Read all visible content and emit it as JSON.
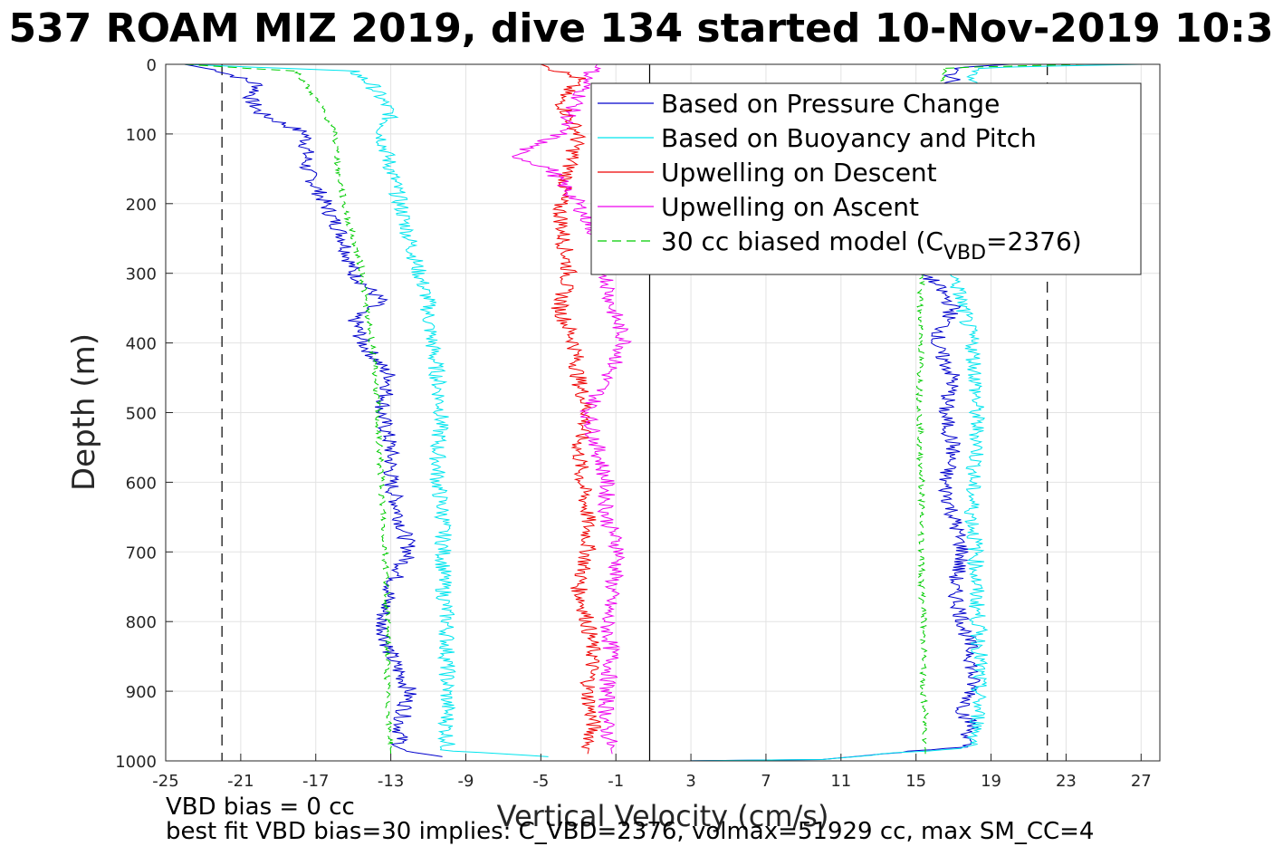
{
  "chart_data": {
    "type": "line",
    "title": "537 ROAM MIZ 2019, dive 134 started 10-Nov-2019 10:3",
    "xlabel": "Vertical Velocity (cm/s)",
    "ylabel": "Depth (m)",
    "xlim": [
      -25,
      28
    ],
    "ylim": [
      0,
      1000
    ],
    "y_reversed": true,
    "grid": true,
    "xticks": [
      -25,
      -21,
      -17,
      -13,
      -9,
      -5,
      -1,
      3,
      7,
      11,
      15,
      19,
      23,
      27
    ],
    "yticks": [
      0,
      100,
      200,
      300,
      400,
      500,
      600,
      700,
      800,
      900,
      1000
    ],
    "reference_lines": [
      {
        "x": 0.8,
        "style": "solid",
        "color": "#000000"
      },
      {
        "x": -22.0,
        "style": "dashed",
        "color": "#000000"
      },
      {
        "x": 22.0,
        "style": "dashed",
        "color": "#000000"
      }
    ],
    "legend": {
      "placement": "top-right",
      "entries": [
        {
          "label": "Based on Pressure Change",
          "color": "#0000cc",
          "style": "solid"
        },
        {
          "label": "Based on Buoyancy and Pitch",
          "color": "#00e5ee",
          "style": "solid"
        },
        {
          "label": "Upwelling on Descent",
          "color": "#ee0000",
          "style": "solid"
        },
        {
          "label": "Upwelling on Ascent",
          "color": "#ee00ee",
          "style": "solid"
        },
        {
          "label_prefix": "30 cc biased model (C",
          "label_sub": "VBD",
          "label_suffix": "=2376)",
          "color": "#00cc00",
          "style": "dashed"
        }
      ]
    },
    "series": [
      {
        "key": "pressure_descent",
        "color": "#0000cc",
        "dash": false,
        "depth": [
          0,
          10,
          30,
          50,
          70,
          100,
          150,
          200,
          250,
          300,
          340,
          360,
          400,
          450,
          500,
          550,
          600,
          650,
          700,
          750,
          800,
          850,
          900,
          950,
          985,
          995
        ],
        "velocity": [
          -24,
          -22,
          -20,
          -20.5,
          -20,
          -17.5,
          -17.5,
          -16.5,
          -15.5,
          -15,
          -13.5,
          -15,
          -14.5,
          -13,
          -13.5,
          -13,
          -13,
          -12.5,
          -12,
          -13,
          -13.5,
          -13,
          -12,
          -12.5,
          -12.5,
          -10
        ]
      },
      {
        "key": "buoyancy_descent",
        "color": "#00e5ee",
        "dash": false,
        "depth": [
          0,
          10,
          30,
          50,
          70,
          100,
          150,
          200,
          250,
          300,
          340,
          360,
          400,
          450,
          500,
          550,
          600,
          650,
          700,
          750,
          800,
          850,
          900,
          950,
          985,
          995
        ],
        "velocity": [
          -24,
          -15,
          -14,
          -13.5,
          -13,
          -13.5,
          -13,
          -12.5,
          -12,
          -11.5,
          -11,
          -11,
          -10.8,
          -10.5,
          -10.3,
          -10.5,
          -10.5,
          -10.2,
          -10.2,
          -10.2,
          -10,
          -10,
          -10,
          -10,
          -10,
          -4
        ]
      },
      {
        "key": "upwelling_descent",
        "color": "#ee0000",
        "dash": false,
        "depth": [
          0,
          20,
          50,
          100,
          150,
          200,
          250,
          300,
          350,
          400,
          450,
          500,
          550,
          600,
          650,
          700,
          750,
          800,
          850,
          900,
          950,
          990
        ],
        "velocity": [
          -5,
          -3,
          -4,
          -3,
          -3.5,
          -4,
          -3.8,
          -3.5,
          -4,
          -3.2,
          -3,
          -2.5,
          -3,
          -2.8,
          -2.5,
          -2.5,
          -3,
          -2.5,
          -2.2,
          -2.5,
          -2.2,
          -2.5
        ]
      },
      {
        "key": "upwelling_ascent",
        "color": "#ee00ee",
        "dash": false,
        "depth": [
          0,
          20,
          50,
          100,
          130,
          150,
          200,
          250,
          300,
          350,
          400,
          450,
          500,
          550,
          600,
          650,
          700,
          750,
          800,
          850,
          900,
          950,
          990
        ],
        "velocity": [
          -2,
          -2.5,
          -3,
          -4,
          -6.5,
          -4.5,
          -3,
          -2,
          -1.5,
          -1.2,
          -0.5,
          -1.5,
          -2.5,
          -2,
          -1.5,
          -1.5,
          -0.8,
          -1.2,
          -1.5,
          -1.2,
          -1.5,
          -1.5,
          -1.2
        ]
      },
      {
        "key": "pressure_ascent",
        "color": "#0000cc",
        "dash": false,
        "depth": [
          0,
          5,
          300,
          330,
          350,
          400,
          450,
          500,
          550,
          600,
          650,
          700,
          750,
          800,
          850,
          900,
          930,
          950,
          980,
          998,
          1000
        ],
        "velocity": [
          20,
          17,
          15.5,
          16.5,
          17,
          16,
          17,
          16.5,
          17,
          16.5,
          17,
          17.5,
          17,
          17.5,
          18,
          18,
          17.5,
          18,
          17.5,
          10,
          2
        ]
      },
      {
        "key": "buoyancy_ascent",
        "color": "#00e5ee",
        "dash": false,
        "depth": [
          0,
          5,
          300,
          350,
          400,
          450,
          500,
          550,
          600,
          650,
          700,
          750,
          800,
          850,
          900,
          950,
          980,
          998,
          1000
        ],
        "velocity": [
          27,
          18,
          17,
          17.5,
          18,
          18.2,
          18.2,
          18.3,
          18,
          18,
          18.2,
          18.2,
          18.3,
          18.4,
          18.3,
          18.3,
          18,
          10,
          2
        ]
      },
      {
        "key": "model_descent",
        "color": "#00cc00",
        "dash": true,
        "depth": [
          0,
          10,
          30,
          50,
          70,
          100,
          150,
          200,
          250,
          300,
          350,
          400,
          450,
          500,
          550,
          600,
          650,
          700,
          750,
          800,
          850,
          900,
          950,
          990
        ],
        "velocity": [
          -24,
          -18,
          -17.5,
          -17,
          -16.5,
          -16,
          -15.8,
          -15.5,
          -15,
          -14.5,
          -14.3,
          -14,
          -13.8,
          -13.7,
          -13.6,
          -13.5,
          -13.4,
          -13.3,
          -13.2,
          -13.2,
          -13.2,
          -13.2,
          -13.1,
          -13
        ]
      },
      {
        "key": "model_ascent",
        "color": "#00cc00",
        "dash": true,
        "depth": [
          0,
          5,
          300,
          350,
          400,
          450,
          500,
          550,
          600,
          650,
          700,
          750,
          800,
          850,
          900,
          950,
          990
        ],
        "velocity": [
          24,
          16.5,
          15.3,
          15.2,
          15.3,
          15.2,
          15.2,
          15.2,
          15.3,
          15.3,
          15.3,
          15.3,
          15.4,
          15.4,
          15.4,
          15.5,
          15.5
        ]
      }
    ]
  },
  "footnotes": {
    "line1": "VBD bias = 0 cc",
    "line2": "best fit VBD bias=30 implies: C_VBD=2376, volmax=51929 cc, max SM_CC=4"
  }
}
